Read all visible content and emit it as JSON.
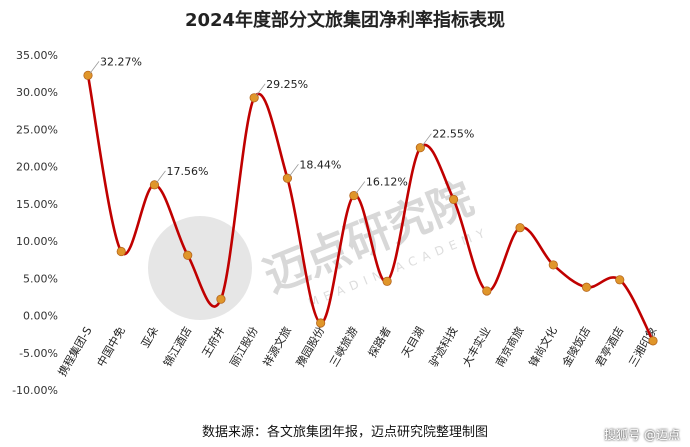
{
  "chart_data": {
    "type": "line",
    "title": "2024年度部分文旅集团净利率指标表现",
    "categories": [
      "携程集团-S",
      "中国中免",
      "亚朵",
      "锦江酒店",
      "王府井",
      "丽江股份",
      "祥源文旅",
      "豫园股份",
      "三峡旅游",
      "探路者",
      "天目湖",
      "驴迹科技",
      "大丰实业",
      "南京商旅",
      "锋尚文化",
      "金陵饭店",
      "君亭酒店",
      "三湘印象"
    ],
    "values": [
      32.27,
      8.6,
      17.56,
      8.1,
      2.2,
      29.25,
      18.44,
      -1.0,
      16.12,
      4.6,
      22.55,
      15.6,
      3.3,
      11.8,
      6.8,
      3.8,
      4.8,
      -3.4
    ],
    "data_labels": [
      {
        "index": 0,
        "text": "32.27%"
      },
      {
        "index": 2,
        "text": "17.56%"
      },
      {
        "index": 5,
        "text": "29.25%"
      },
      {
        "index": 6,
        "text": "18.44%"
      },
      {
        "index": 8,
        "text": "16.12%"
      },
      {
        "index": 10,
        "text": "22.55%"
      }
    ],
    "y_ticks": [
      "35.00%",
      "30.00%",
      "25.00%",
      "20.00%",
      "15.00%",
      "10.00%",
      "5.00%",
      "0.00%",
      "-5.00%",
      "-10.00%"
    ],
    "ylim": [
      -10,
      35
    ],
    "grid": false,
    "line_color": "#c00000",
    "marker_color": "#e0962a"
  },
  "watermark": {
    "main": "迈点研究院",
    "sub": "MEADIN ACADEMY"
  },
  "footer": {
    "source": "数据来源：各文旅集团年报，迈点研究院整理制图",
    "credit": "搜狐号 @迈点"
  }
}
